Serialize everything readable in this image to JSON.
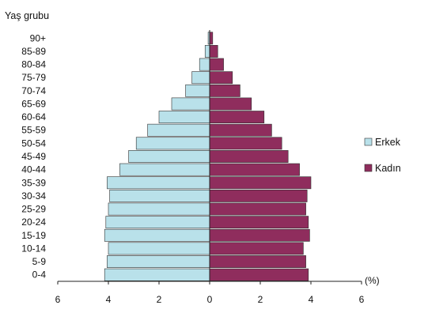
{
  "chart_data": {
    "type": "bar",
    "orientation": "horizontal",
    "title": "Yaş grubu",
    "xlabel": "(%)",
    "ylabel": "Yaş grubu",
    "categories": [
      "0-4",
      "5-9",
      "10-14",
      "15-19",
      "20-24",
      "25-29",
      "30-34",
      "35-39",
      "40-44",
      "45-49",
      "50-54",
      "55-59",
      "60-64",
      "65-69",
      "70-74",
      "75-79",
      "80-84",
      "85-89",
      "90+"
    ],
    "series": [
      {
        "name": "Erkek",
        "color": "#b9e1ea",
        "values": [
          4.15,
          4.05,
          4.0,
          4.15,
          4.1,
          4.0,
          3.95,
          4.05,
          3.55,
          3.2,
          2.9,
          2.45,
          2.0,
          1.5,
          0.95,
          0.7,
          0.4,
          0.18,
          0.06
        ]
      },
      {
        "name": "Kadın",
        "color": "#8f2d5d",
        "values": [
          3.9,
          3.8,
          3.7,
          3.95,
          3.9,
          3.8,
          3.85,
          4.0,
          3.55,
          3.1,
          2.85,
          2.45,
          2.15,
          1.65,
          1.2,
          0.9,
          0.55,
          0.32,
          0.12
        ]
      }
    ],
    "xlim": [
      -6,
      6
    ],
    "x_ticks": [
      6,
      4,
      2,
      0,
      2,
      4,
      6
    ],
    "grid": false,
    "legend_position": "right"
  }
}
